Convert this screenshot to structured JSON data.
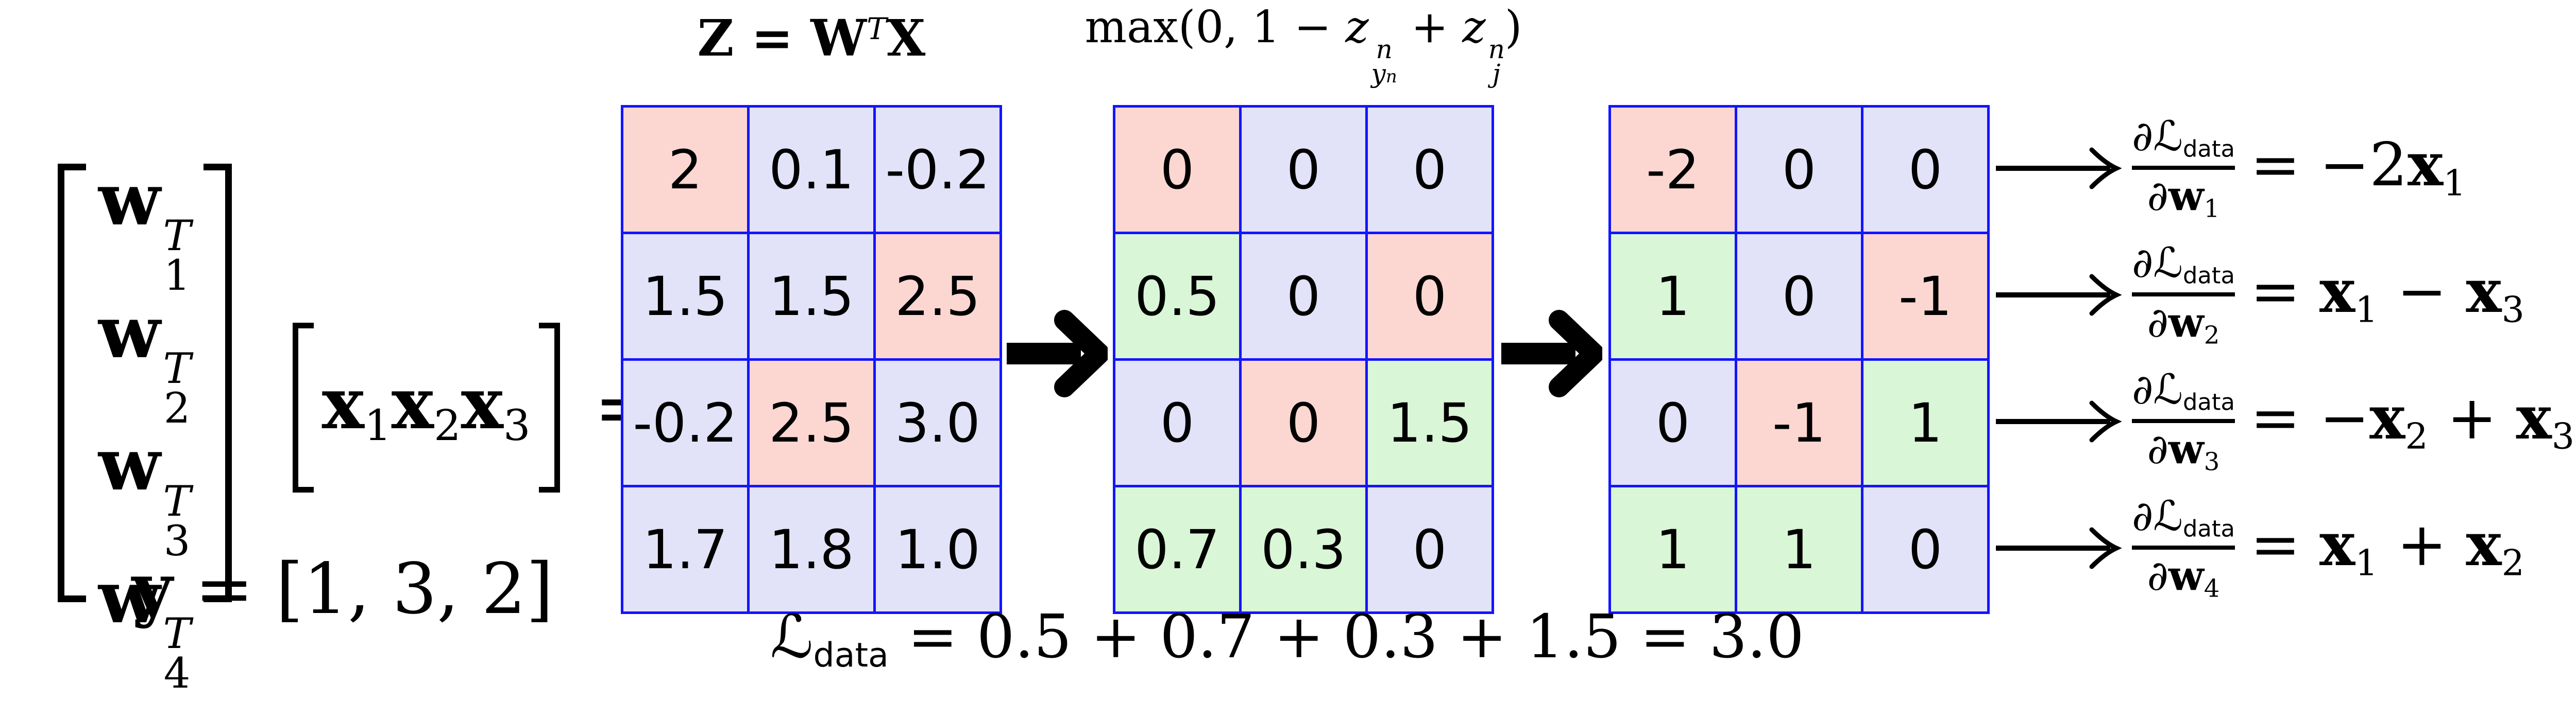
{
  "colors": {
    "pink": "#fcd7d2",
    "lavender": "#e2e2f8",
    "green": "#d9f6d6",
    "gridline": "#1414ff",
    "ink": "#000000"
  },
  "left_block": {
    "w_matrix_rows": [
      [
        {
          "t": "w",
          "b": 1,
          "sup": "T",
          "sub": "1"
        }
      ],
      [
        {
          "t": "w",
          "b": 1,
          "sup": "T",
          "sub": "2"
        }
      ],
      [
        {
          "t": "w",
          "b": 1,
          "sup": "T",
          "sub": "3"
        }
      ],
      [
        {
          "t": "w",
          "b": 1,
          "sup": "T",
          "sub": "4"
        }
      ]
    ],
    "x_vector": [
      {
        "t": "x",
        "b": 1,
        "sub": "1"
      },
      {
        "t": "x",
        "b": 1,
        "sub": "2"
      },
      {
        "t": "x",
        "b": 1,
        "sub": "3"
      }
    ],
    "equals": "=",
    "y_label": [
      {
        "t": "y",
        "b": 1
      },
      {
        "t": " = [1, 3, 2]"
      }
    ]
  },
  "grid_labels": {
    "z": [
      {
        "t": "Z = W",
        "b": 1
      },
      {
        "sup": "T"
      },
      {
        "t": "X",
        "b": 1
      }
    ],
    "max": [
      {
        "t": "max(0, 1 − "
      },
      {
        "t": "z",
        "i": 1,
        "sup": "n",
        "sub": "y",
        "subsub": "n",
        "subi": 1
      },
      {
        "t": " + "
      },
      {
        "t": "z",
        "i": 1,
        "sup": "n",
        "sub": "j",
        "subi": 1
      },
      {
        "t": ")"
      }
    ]
  },
  "grids": [
    {
      "id": "scores",
      "rows": [
        [
          {
            "v": "2",
            "c": "p"
          },
          {
            "v": "0.1",
            "c": "l"
          },
          {
            "v": "-0.2",
            "c": "l"
          }
        ],
        [
          {
            "v": "1.5",
            "c": "l"
          },
          {
            "v": "1.5",
            "c": "l"
          },
          {
            "v": "2.5",
            "c": "p"
          }
        ],
        [
          {
            "v": "-0.2",
            "c": "l"
          },
          {
            "v": "2.5",
            "c": "p"
          },
          {
            "v": "3.0",
            "c": "l"
          }
        ],
        [
          {
            "v": "1.7",
            "c": "l"
          },
          {
            "v": "1.8",
            "c": "l"
          },
          {
            "v": "1.0",
            "c": "l"
          }
        ]
      ]
    },
    {
      "id": "hinge",
      "rows": [
        [
          {
            "v": "0",
            "c": "p"
          },
          {
            "v": "0",
            "c": "l"
          },
          {
            "v": "0",
            "c": "l"
          }
        ],
        [
          {
            "v": "0.5",
            "c": "g"
          },
          {
            "v": "0",
            "c": "l"
          },
          {
            "v": "0",
            "c": "p"
          }
        ],
        [
          {
            "v": "0",
            "c": "l"
          },
          {
            "v": "0",
            "c": "p"
          },
          {
            "v": "1.5",
            "c": "g"
          }
        ],
        [
          {
            "v": "0.7",
            "c": "g"
          },
          {
            "v": "0.3",
            "c": "g"
          },
          {
            "v": "0",
            "c": "l"
          }
        ]
      ]
    },
    {
      "id": "indicator",
      "rows": [
        [
          {
            "v": "-2",
            "c": "p"
          },
          {
            "v": "0",
            "c": "l"
          },
          {
            "v": "0",
            "c": "l"
          }
        ],
        [
          {
            "v": "1",
            "c": "g"
          },
          {
            "v": "0",
            "c": "l"
          },
          {
            "v": "-1",
            "c": "p"
          }
        ],
        [
          {
            "v": "0",
            "c": "l"
          },
          {
            "v": "-1",
            "c": "p"
          },
          {
            "v": "1",
            "c": "g"
          }
        ],
        [
          {
            "v": "1",
            "c": "g"
          },
          {
            "v": "1",
            "c": "g"
          },
          {
            "v": "0",
            "c": "l"
          }
        ]
      ]
    }
  ],
  "gradients": [
    {
      "num": [
        {
          "t": "∂"
        },
        {
          "t": "ℒ",
          "cls": "scr",
          "sub": "data",
          "subsf": 1
        }
      ],
      "den": [
        {
          "t": "∂"
        },
        {
          "t": "w",
          "b": 1,
          "sub": "1"
        }
      ],
      "rhs": [
        {
          "t": "= −2"
        },
        {
          "t": "x",
          "b": 1,
          "sub": "1"
        }
      ]
    },
    {
      "num": [
        {
          "t": "∂"
        },
        {
          "t": "ℒ",
          "cls": "scr",
          "sub": "data",
          "subsf": 1
        }
      ],
      "den": [
        {
          "t": "∂"
        },
        {
          "t": "w",
          "b": 1,
          "sub": "2"
        }
      ],
      "rhs": [
        {
          "t": "= "
        },
        {
          "t": "x",
          "b": 1,
          "sub": "1"
        },
        {
          "t": " − "
        },
        {
          "t": "x",
          "b": 1,
          "sub": "3"
        }
      ]
    },
    {
      "num": [
        {
          "t": "∂"
        },
        {
          "t": "ℒ",
          "cls": "scr",
          "sub": "data",
          "subsf": 1
        }
      ],
      "den": [
        {
          "t": "∂"
        },
        {
          "t": "w",
          "b": 1,
          "sub": "3"
        }
      ],
      "rhs": [
        {
          "t": "= −"
        },
        {
          "t": "x",
          "b": 1,
          "sub": "2"
        },
        {
          "t": " + "
        },
        {
          "t": "x",
          "b": 1,
          "sub": "3"
        }
      ]
    },
    {
      "num": [
        {
          "t": "∂"
        },
        {
          "t": "ℒ",
          "cls": "scr",
          "sub": "data",
          "subsf": 1
        }
      ],
      "den": [
        {
          "t": "∂"
        },
        {
          "t": "w",
          "b": 1,
          "sub": "4"
        }
      ],
      "rhs": [
        {
          "t": "= "
        },
        {
          "t": "x",
          "b": 1,
          "sub": "1"
        },
        {
          "t": " + "
        },
        {
          "t": "x",
          "b": 1,
          "sub": "2"
        }
      ]
    }
  ],
  "loss_formula": [
    {
      "t": "ℒ",
      "cls": "scr",
      "sub": "data",
      "subsf": 1
    },
    {
      "t": " = 0.5 + 0.7 + 0.3 + 1.5 = 3.0"
    }
  ]
}
